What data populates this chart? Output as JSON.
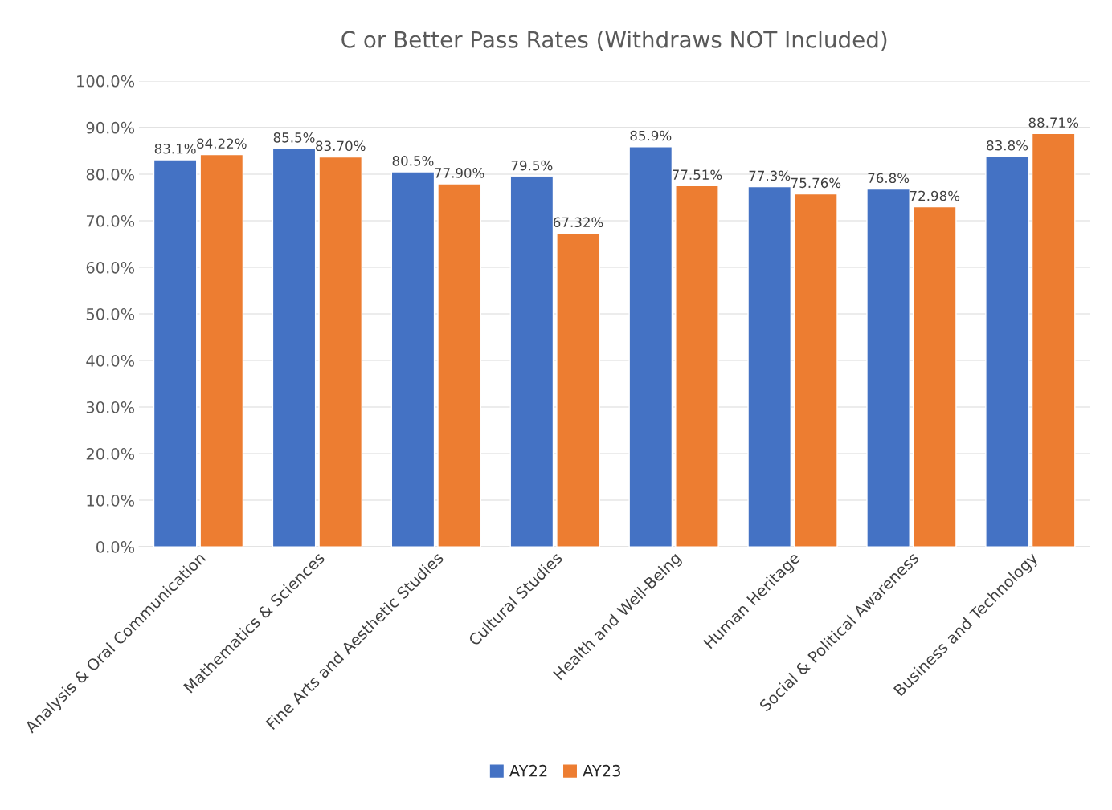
{
  "chart_data": {
    "type": "bar",
    "title": "C or Better Pass Rates (Withdraws NOT Included)",
    "categories": [
      "Analysis & Oral Communication",
      "Mathematics & Sciences",
      "Fine Arts and Aesthetic Studies",
      "Cultural Studies",
      "Health and Well-Being",
      "Human Heritage",
      "Social & Political Awareness",
      "Business and Technology"
    ],
    "series": [
      {
        "name": "AY22",
        "color": "#4472c4",
        "values": [
          83.1,
          85.5,
          80.5,
          79.5,
          85.9,
          77.3,
          76.8,
          83.8
        ],
        "value_labels": [
          "83.1%",
          "85.5%",
          "80.5%",
          "79.5%",
          "85.9%",
          "77.3%",
          "76.8%",
          "83.8%"
        ]
      },
      {
        "name": "AY23",
        "color": "#ed7d31",
        "values": [
          84.22,
          83.7,
          77.9,
          67.32,
          77.51,
          75.76,
          72.98,
          88.71
        ],
        "value_labels": [
          "84.22%",
          "83.70%",
          "77.90%",
          "67.32%",
          "77.51%",
          "75.76%",
          "72.98%",
          "88.71%"
        ]
      }
    ],
    "ylim": [
      0,
      100
    ],
    "yticks": [
      {
        "value": 0,
        "label": "0.0%"
      },
      {
        "value": 10,
        "label": "10.0%"
      },
      {
        "value": 20,
        "label": "20.0%"
      },
      {
        "value": 30,
        "label": "30.0%"
      },
      {
        "value": 40,
        "label": "40.0%"
      },
      {
        "value": 50,
        "label": "50.0%"
      },
      {
        "value": 60,
        "label": "60.0%"
      },
      {
        "value": 70,
        "label": "70.0%"
      },
      {
        "value": 80,
        "label": "80.0%"
      },
      {
        "value": 90,
        "label": "90.0%"
      },
      {
        "value": 100,
        "label": "100.0%"
      }
    ],
    "grid": "y",
    "legend": "bottom"
  }
}
